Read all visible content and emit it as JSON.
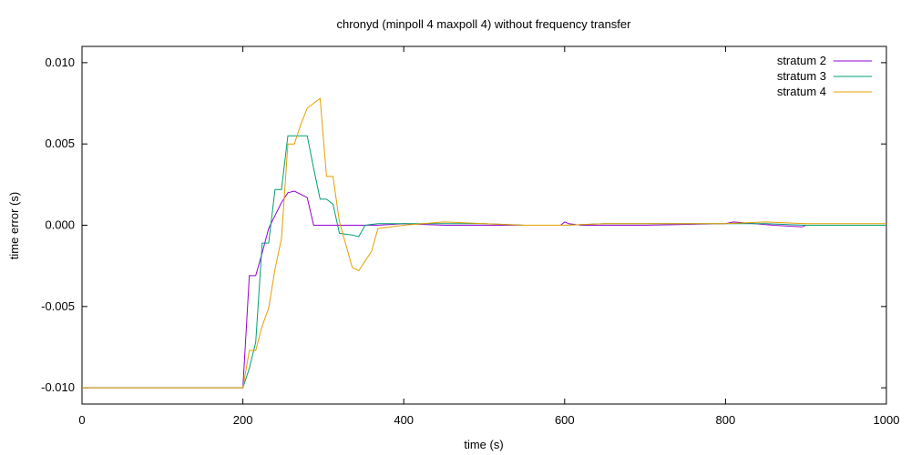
{
  "chart_data": {
    "type": "line",
    "title": "chronyd (minpoll 4 maxpoll 4) without frequency transfer",
    "xlabel": "time (s)",
    "ylabel": "time error (s)",
    "xlim": [
      0,
      1000
    ],
    "ylim": [
      -0.011,
      0.011
    ],
    "x_ticks": [
      0,
      200,
      400,
      600,
      800,
      1000
    ],
    "x_tick_labels": [
      "0",
      "200",
      "400",
      "600",
      "800",
      "1000"
    ],
    "y_ticks": [
      -0.01,
      -0.005,
      0,
      0.005,
      0.01
    ],
    "y_tick_labels": [
      "-0.010",
      "-0.005",
      "0.000",
      "0.005",
      "0.010"
    ],
    "grid": false,
    "legend_position": "top-right",
    "series": [
      {
        "name": "stratum 2",
        "color": "#9400d3",
        "x": [
          0,
          200,
          208,
          216,
          224,
          232,
          240,
          248,
          256,
          264,
          272,
          280,
          288,
          296,
          304,
          312,
          320,
          336,
          352,
          368,
          400,
          450,
          500,
          550,
          595,
          600,
          605,
          620,
          700,
          800,
          810,
          860,
          895,
          900,
          950,
          1000
        ],
        "y": [
          -0.01,
          -0.01,
          -0.0031,
          -0.0031,
          -0.0017,
          -0.0002,
          0.0006,
          0.0014,
          0.002,
          0.0021,
          0.0019,
          0.0017,
          0.0,
          0.0,
          0.0,
          0.0,
          0.0,
          0.0,
          0.0,
          0.0,
          0.0001,
          0.0,
          0.0,
          0.0,
          0.0,
          0.0002,
          0.0001,
          0.0,
          0.0,
          0.0001,
          0.0002,
          0.0,
          -0.0001,
          0.0,
          0.0,
          0.0
        ]
      },
      {
        "name": "stratum 3",
        "color": "#009e73",
        "x": [
          0,
          200,
          208,
          216,
          224,
          232,
          240,
          248,
          256,
          264,
          272,
          280,
          288,
          296,
          304,
          312,
          320,
          336,
          344,
          352,
          368,
          400,
          450,
          500,
          550,
          600,
          650,
          700,
          800,
          850,
          900,
          950,
          1000
        ],
        "y": [
          -0.01,
          -0.01,
          -0.0088,
          -0.0072,
          -0.0011,
          -0.0011,
          0.0022,
          0.0022,
          0.0055,
          0.0055,
          0.0055,
          0.0055,
          0.0035,
          0.0016,
          0.0016,
          0.0013,
          -0.0005,
          -0.0006,
          -0.0007,
          0.0,
          0.0001,
          0.0001,
          0.0001,
          0.0001,
          0.0,
          0.0,
          0.0001,
          0.0001,
          0.0001,
          0.0001,
          0.0,
          0.0,
          0.0
        ]
      },
      {
        "name": "stratum 4",
        "color": "#e69f00",
        "x": [
          0,
          200,
          208,
          216,
          224,
          232,
          240,
          248,
          256,
          264,
          272,
          280,
          288,
          296,
          304,
          312,
          320,
          336,
          344,
          352,
          360,
          368,
          400,
          450,
          500,
          550,
          600,
          650,
          700,
          750,
          800,
          850,
          900,
          950,
          1000
        ],
        "y": [
          -0.01,
          -0.01,
          -0.0077,
          -0.0077,
          -0.0062,
          -0.0051,
          -0.0027,
          -0.0008,
          0.005,
          0.005,
          0.0062,
          0.0072,
          0.0075,
          0.0078,
          0.003,
          0.003,
          0.0002,
          -0.0026,
          -0.0028,
          -0.0022,
          -0.0016,
          -0.0002,
          0.0,
          0.0002,
          0.0001,
          0.0,
          0.0,
          0.0001,
          0.0001,
          0.0001,
          0.0001,
          0.0002,
          0.0001,
          0.0001,
          0.0001
        ]
      }
    ]
  }
}
